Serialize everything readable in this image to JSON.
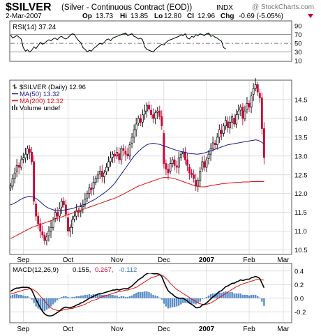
{
  "header": {
    "symbol": "$SILVER",
    "description": "(Silver - Continuous Contract (EOD))",
    "exchange": "INDX",
    "watermark": "@ StockCharts.com",
    "date": "2-Mar-2007",
    "quote": {
      "op_label": "Op",
      "op": "13.73",
      "hi_label": "Hi",
      "hi": "13.85",
      "lo_label": "Lo",
      "lo": "12.80",
      "cl_label": "Cl",
      "cl": "12.96",
      "chg_label": "Chg",
      "chg": "-0.69 (-5.05%)"
    }
  },
  "colors": {
    "up": "#000000",
    "down": "#cc0033",
    "ma50": "#1a1a8c",
    "ma200": "#dd1111",
    "rsi_fill": "#4a9b4a",
    "macd_hist": "#5b8fc9",
    "grid": "#c8c8c8"
  },
  "chart_data": [
    {
      "type": "line",
      "panel": "RSI",
      "legend": "RSI(14) 37.24",
      "ylim": [
        10,
        100
      ],
      "yticks": [
        90,
        70,
        50,
        30,
        10
      ],
      "reference_lines": [
        70,
        50,
        30
      ],
      "xlim": [
        0,
        130
      ],
      "values": [
        70,
        62,
        65,
        68,
        64,
        60,
        40,
        32,
        35,
        30,
        34,
        42,
        38,
        45,
        52,
        48,
        50,
        55,
        58,
        56,
        60,
        62,
        58,
        64,
        66,
        62,
        60,
        63,
        68,
        72,
        70,
        62,
        56,
        52,
        40,
        36,
        30,
        34,
        32,
        38,
        42,
        46,
        50,
        48,
        52,
        58,
        60,
        56,
        62,
        64,
        66,
        68,
        70,
        72,
        74,
        68,
        70,
        72,
        66,
        64,
        60,
        62,
        58,
        42,
        36,
        34,
        32,
        30,
        36,
        40,
        44,
        48,
        46,
        52,
        56,
        58,
        60,
        62,
        64,
        66,
        70,
        68,
        72,
        62,
        60,
        66,
        64,
        70,
        68,
        72,
        70,
        68,
        72,
        74,
        66,
        68,
        64,
        62,
        58,
        55,
        40,
        37.24
      ]
    },
    {
      "type": "candlestick",
      "panel": "Price",
      "legend": [
        {
          "label": "$SILVER (Daily) 12.96",
          "marker": "bar"
        },
        {
          "label": "MA(50) 13.32",
          "marker": "blue-line"
        },
        {
          "label": "MA(200) 12.32",
          "marker": "red-line"
        },
        {
          "label": "Volume undef",
          "marker": "volume"
        }
      ],
      "ylim": [
        10.4,
        15.0
      ],
      "yticks": [
        14.5,
        14.0,
        13.5,
        13.0,
        12.5,
        12.0,
        11.5,
        11.0,
        10.5
      ],
      "x_labels": [
        {
          "label": "Sep",
          "x": 6
        },
        {
          "label": "Oct",
          "x": 27
        },
        {
          "label": "Nov",
          "x": 50
        },
        {
          "label": "Dec",
          "x": 72
        },
        {
          "label": "2007",
          "x": 92
        },
        {
          "label": "Feb",
          "x": 112
        },
        {
          "label": "Mar",
          "x": 128
        }
      ],
      "xlim": [
        0,
        130
      ],
      "close": [
        12.2,
        12.4,
        12.55,
        12.75,
        12.7,
        12.9,
        12.95,
        13.05,
        13.2,
        13.1,
        12.85,
        11.8,
        11.4,
        11.2,
        11.0,
        10.9,
        10.75,
        10.85,
        11.0,
        11.1,
        11.3,
        11.5,
        11.4,
        11.6,
        11.8,
        11.7,
        11.45,
        11.0,
        11.1,
        11.3,
        11.4,
        11.55,
        11.5,
        11.65,
        11.7,
        11.85,
        12.0,
        12.15,
        12.1,
        12.3,
        12.4,
        12.5,
        12.6,
        12.45,
        12.55,
        12.7,
        12.85,
        12.95,
        13.05,
        13.0,
        13.1,
        12.9,
        13.2,
        13.15,
        13.05,
        13.0,
        13.3,
        13.5,
        13.7,
        13.85,
        14.0,
        13.9,
        14.1,
        14.2,
        14.35,
        14.25,
        14.1,
        14.0,
        14.15,
        14.2,
        14.05,
        13.8,
        12.8,
        12.65,
        12.55,
        12.8,
        12.9,
        12.75,
        12.7,
        12.95,
        13.05,
        13.1,
        12.9,
        12.75,
        12.55,
        12.5,
        12.4,
        12.2,
        12.35,
        12.6,
        12.85,
        12.7,
        12.9,
        13.05,
        13.2,
        13.35,
        13.3,
        13.5,
        13.7,
        13.6,
        13.8,
        13.95,
        13.75,
        13.9,
        14.05,
        13.85,
        14.1,
        14.2,
        14.3,
        14.0,
        14.2,
        14.4,
        14.3,
        14.6,
        14.8,
        14.9,
        14.7,
        14.55,
        13.73,
        12.96
      ],
      "ma50": [
        11.7,
        11.72,
        11.75,
        11.78,
        11.82,
        11.85,
        11.88,
        11.9,
        11.92,
        11.93,
        11.92,
        11.9,
        11.87,
        11.83,
        11.78,
        11.73,
        11.68,
        11.64,
        11.61,
        11.59,
        11.57,
        11.55,
        11.54,
        11.54,
        11.55,
        11.56,
        11.57,
        11.58,
        11.59,
        11.6,
        11.62,
        11.64,
        11.66,
        11.68,
        11.7,
        11.72,
        11.74,
        11.77,
        11.8,
        11.83,
        11.86,
        11.9,
        11.94,
        11.98,
        12.02,
        12.06,
        12.11,
        12.16,
        12.22,
        12.28,
        12.36,
        12.44,
        12.52,
        12.6,
        12.68,
        12.76,
        12.84,
        12.92,
        13.0,
        13.06,
        13.12,
        13.17,
        13.22,
        13.26,
        13.3,
        13.32,
        13.33,
        13.34,
        13.33,
        13.32,
        13.31,
        13.29,
        13.27,
        13.25,
        13.23,
        13.21,
        13.19,
        13.17,
        13.15,
        13.14,
        13.12,
        13.11,
        13.1,
        13.08,
        13.07,
        13.06,
        13.06,
        13.05,
        13.05,
        13.06,
        13.07,
        13.08,
        13.1,
        13.12,
        13.14,
        13.16,
        13.18,
        13.2,
        13.22,
        13.24,
        13.26,
        13.28,
        13.3,
        13.31,
        13.32,
        13.33,
        13.34,
        13.35,
        13.36,
        13.37,
        13.38,
        13.39,
        13.4,
        13.41,
        13.42,
        13.43,
        13.42,
        13.4,
        13.36,
        13.32
      ],
      "ma200": [
        10.8,
        10.83,
        10.86,
        10.89,
        10.92,
        10.95,
        10.98,
        11.01,
        11.04,
        11.07,
        11.1,
        11.12,
        11.14,
        11.16,
        11.18,
        11.2,
        11.22,
        11.24,
        11.26,
        11.28,
        11.3,
        11.32,
        11.34,
        11.36,
        11.38,
        11.4,
        11.42,
        11.44,
        11.46,
        11.48,
        11.5,
        11.52,
        11.54,
        11.56,
        11.58,
        11.6,
        11.62,
        11.64,
        11.66,
        11.68,
        11.7,
        11.72,
        11.74,
        11.76,
        11.78,
        11.8,
        11.82,
        11.84,
        11.86,
        11.88,
        11.9,
        11.93,
        11.96,
        11.99,
        12.02,
        12.05,
        12.08,
        12.11,
        12.14,
        12.17,
        12.2,
        12.22,
        12.24,
        12.26,
        12.28,
        12.3,
        12.32,
        12.34,
        12.36,
        12.38,
        12.4,
        12.42,
        12.43,
        12.43,
        12.43,
        12.42,
        12.41,
        12.4,
        12.38,
        12.36,
        12.34,
        12.32,
        12.3,
        12.28,
        12.26,
        12.24,
        12.22,
        12.2,
        12.19,
        12.18,
        12.18,
        12.18,
        12.19,
        12.2,
        12.21,
        12.22,
        12.23,
        12.24,
        12.25,
        12.26,
        12.27,
        12.27,
        12.28,
        12.28,
        12.29,
        12.29,
        12.3,
        12.3,
        12.3,
        12.31,
        12.31,
        12.31,
        12.31,
        12.32,
        12.32,
        12.32,
        12.32,
        12.32,
        12.32,
        12.32
      ]
    },
    {
      "type": "line",
      "panel": "MACD",
      "legend": {
        "name": "MACD(12,26,9)",
        "macd": "0.155",
        "signal": "0.267",
        "hist": "-0.112"
      },
      "ylim": [
        -0.35,
        0.5
      ],
      "yticks": [
        0.4,
        0.2,
        0.0,
        -0.2
      ],
      "x_labels": [
        {
          "label": "Sep",
          "x": 6
        },
        {
          "label": "Oct",
          "x": 27
        },
        {
          "label": "Nov",
          "x": 50
        },
        {
          "label": "Dec",
          "x": 72
        },
        {
          "label": "2007",
          "x": 92
        },
        {
          "label": "Feb",
          "x": 112
        },
        {
          "label": "Mar",
          "x": 128
        }
      ],
      "xlim": [
        0,
        130
      ],
      "macd": [
        0.1,
        0.12,
        0.14,
        0.15,
        0.15,
        0.16,
        0.16,
        0.16,
        0.16,
        0.15,
        0.12,
        0.05,
        -0.02,
        -0.08,
        -0.14,
        -0.19,
        -0.23,
        -0.25,
        -0.26,
        -0.26,
        -0.25,
        -0.23,
        -0.21,
        -0.19,
        -0.16,
        -0.14,
        -0.13,
        -0.14,
        -0.14,
        -0.13,
        -0.12,
        -0.1,
        -0.09,
        -0.07,
        -0.06,
        -0.04,
        -0.02,
        0.0,
        0.01,
        0.03,
        0.04,
        0.06,
        0.07,
        0.07,
        0.08,
        0.09,
        0.1,
        0.11,
        0.12,
        0.12,
        0.13,
        0.12,
        0.13,
        0.14,
        0.14,
        0.14,
        0.16,
        0.18,
        0.21,
        0.24,
        0.27,
        0.29,
        0.31,
        0.34,
        0.36,
        0.37,
        0.37,
        0.36,
        0.36,
        0.36,
        0.35,
        0.32,
        0.24,
        0.17,
        0.11,
        0.08,
        0.06,
        0.03,
        0.01,
        0.0,
        0.0,
        0.0,
        -0.02,
        -0.04,
        -0.07,
        -0.09,
        -0.11,
        -0.14,
        -0.14,
        -0.13,
        -0.1,
        -0.09,
        -0.07,
        -0.04,
        -0.01,
        0.02,
        0.04,
        0.07,
        0.1,
        0.11,
        0.14,
        0.17,
        0.18,
        0.2,
        0.22,
        0.22,
        0.24,
        0.25,
        0.27,
        0.26,
        0.27,
        0.28,
        0.28,
        0.3,
        0.31,
        0.32,
        0.31,
        0.29,
        0.22,
        0.155
      ],
      "signal": [
        0.06,
        0.07,
        0.08,
        0.09,
        0.1,
        0.11,
        0.12,
        0.13,
        0.13,
        0.14,
        0.14,
        0.12,
        0.1,
        0.07,
        0.03,
        0.0,
        -0.04,
        -0.08,
        -0.11,
        -0.14,
        -0.16,
        -0.17,
        -0.18,
        -0.18,
        -0.18,
        -0.17,
        -0.16,
        -0.16,
        -0.15,
        -0.15,
        -0.14,
        -0.13,
        -0.12,
        -0.11,
        -0.1,
        -0.09,
        -0.07,
        -0.06,
        -0.04,
        -0.03,
        -0.02,
        -0.01,
        0.01,
        0.02,
        0.03,
        0.04,
        0.05,
        0.06,
        0.07,
        0.08,
        0.09,
        0.1,
        0.1,
        0.11,
        0.12,
        0.12,
        0.13,
        0.14,
        0.15,
        0.16,
        0.18,
        0.2,
        0.22,
        0.24,
        0.26,
        0.28,
        0.3,
        0.31,
        0.32,
        0.33,
        0.34,
        0.34,
        0.32,
        0.29,
        0.26,
        0.22,
        0.19,
        0.16,
        0.13,
        0.11,
        0.09,
        0.07,
        0.05,
        0.03,
        0.01,
        -0.01,
        -0.03,
        -0.05,
        -0.07,
        -0.08,
        -0.09,
        -0.09,
        -0.09,
        -0.08,
        -0.07,
        -0.05,
        -0.03,
        -0.01,
        0.01,
        0.03,
        0.05,
        0.07,
        0.09,
        0.11,
        0.13,
        0.15,
        0.17,
        0.18,
        0.2,
        0.21,
        0.22,
        0.23,
        0.24,
        0.25,
        0.26,
        0.27,
        0.28,
        0.28,
        0.27,
        0.267
      ]
    }
  ]
}
